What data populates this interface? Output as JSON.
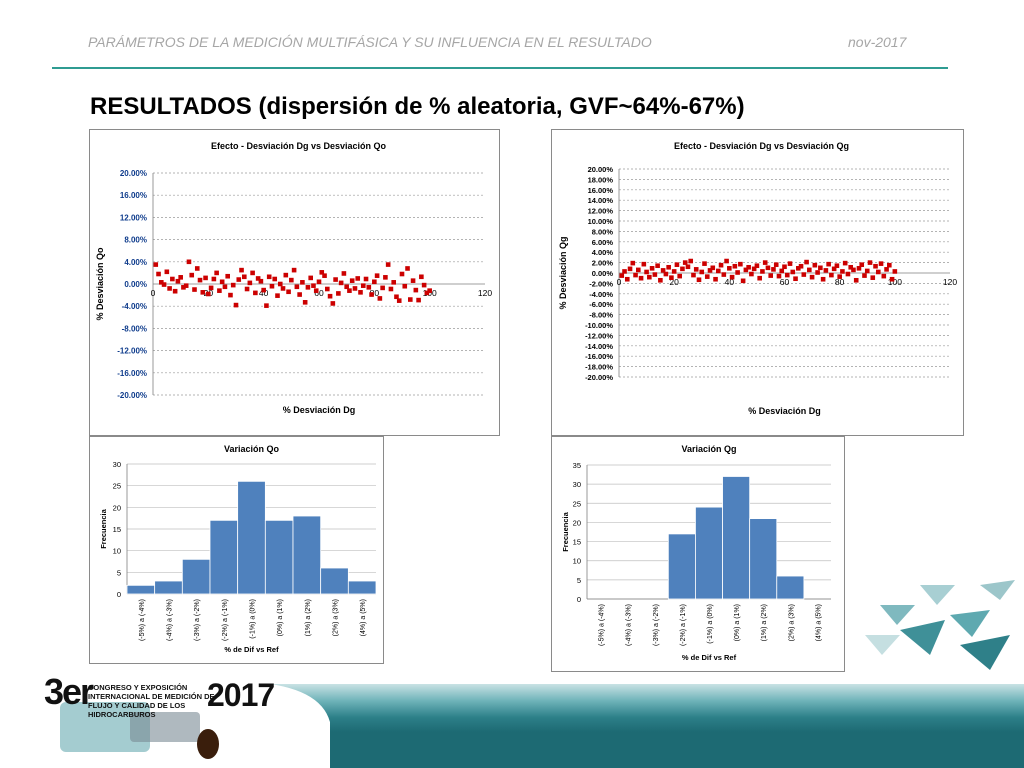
{
  "header": {
    "left": "PARÁMETROS DE LA MEDICIÓN MULTIFÁSICA Y SU INFLUENCIA EN EL RESULTADO",
    "right": "nov-2017"
  },
  "slide_title": "RESULTADOS (dispersión de % aleatoria, GVF~64%-67%)",
  "logo": {
    "edition": "3er",
    "text": "CONGRESO Y EXPOSICIÓN INTERNACIONAL DE MEDICIÓN DE FLUJO Y CALIDAD DE LOS HIDROCARBUROS",
    "year": "2017"
  },
  "colors": {
    "accent": "#2f9c92",
    "scatter_marker": "#cc0000",
    "bar_fill": "#4f81bd",
    "tick_blue": "#0f3c8c"
  },
  "chart_data": [
    {
      "type": "scatter",
      "title": "Efecto - Desviación Dg vs Desviación Qo",
      "xlabel": "% Desviación Dg",
      "ylabel": "% Desviación Qo",
      "xlim": [
        0,
        120
      ],
      "xticks": [
        "0",
        "20",
        "40",
        "60",
        "80",
        "100",
        "120"
      ],
      "ylim": [
        -20,
        20
      ],
      "yticks": [
        "20.00%",
        "16.00%",
        "12.00%",
        "8.00%",
        "4.00%",
        "0.00%",
        "-4.00%",
        "-8.00%",
        "-12.00%",
        "-16.00%",
        "-20.00%"
      ],
      "grid": true,
      "points": [
        [
          1,
          3.5
        ],
        [
          2,
          1.8
        ],
        [
          3,
          0.3
        ],
        [
          4,
          -0.1
        ],
        [
          5,
          2.2
        ],
        [
          6,
          -0.8
        ],
        [
          7,
          0.9
        ],
        [
          8,
          -1.3
        ],
        [
          9,
          0.5
        ],
        [
          10,
          1.2
        ],
        [
          11,
          -0.6
        ],
        [
          12,
          -0.3
        ],
        [
          13,
          4.0
        ],
        [
          14,
          1.6
        ],
        [
          15,
          -1.0
        ],
        [
          16,
          2.8
        ],
        [
          17,
          0.7
        ],
        [
          18,
          -1.5
        ],
        [
          19,
          1.1
        ],
        [
          20,
          -1.8
        ],
        [
          21,
          -0.7
        ],
        [
          22,
          0.9
        ],
        [
          23,
          2.0
        ],
        [
          24,
          -1.2
        ],
        [
          25,
          0.4
        ],
        [
          26,
          -0.5
        ],
        [
          27,
          1.4
        ],
        [
          28,
          -2.0
        ],
        [
          29,
          -0.2
        ],
        [
          30,
          -3.8
        ],
        [
          31,
          0.8
        ],
        [
          32,
          2.5
        ],
        [
          33,
          1.3
        ],
        [
          34,
          -0.9
        ],
        [
          35,
          0.2
        ],
        [
          36,
          2.0
        ],
        [
          37,
          -1.6
        ],
        [
          38,
          1.0
        ],
        [
          39,
          0.5
        ],
        [
          40,
          -1.1
        ],
        [
          41,
          -3.9
        ],
        [
          42,
          1.3
        ],
        [
          43,
          -0.4
        ],
        [
          44,
          0.9
        ],
        [
          45,
          -2.1
        ],
        [
          46,
          0.0
        ],
        [
          47,
          -0.8
        ],
        [
          48,
          1.6
        ],
        [
          49,
          -1.4
        ],
        [
          50,
          0.7
        ],
        [
          51,
          2.5
        ],
        [
          52,
          -0.5
        ],
        [
          53,
          -1.9
        ],
        [
          54,
          0.3
        ],
        [
          55,
          -3.3
        ],
        [
          56,
          -0.6
        ],
        [
          57,
          1.1
        ],
        [
          58,
          -0.3
        ],
        [
          59,
          -1.2
        ],
        [
          60,
          0.4
        ],
        [
          61,
          2.1
        ],
        [
          62,
          1.5
        ],
        [
          63,
          -0.9
        ],
        [
          64,
          -2.2
        ],
        [
          65,
          -3.5
        ],
        [
          66,
          0.8
        ],
        [
          67,
          -1.7
        ],
        [
          68,
          0.2
        ],
        [
          69,
          1.9
        ],
        [
          70,
          -0.5
        ],
        [
          71,
          -1.2
        ],
        [
          72,
          0.6
        ],
        [
          73,
          -0.8
        ],
        [
          74,
          1.0
        ],
        [
          75,
          -1.5
        ],
        [
          76,
          -0.3
        ],
        [
          77,
          0.9
        ],
        [
          78,
          -0.6
        ],
        [
          79,
          -1.9
        ],
        [
          80,
          0.4
        ],
        [
          81,
          1.5
        ],
        [
          82,
          -2.6
        ],
        [
          83,
          -0.7
        ],
        [
          84,
          1.2
        ],
        [
          85,
          3.5
        ],
        [
          86,
          -0.9
        ],
        [
          87,
          0.3
        ],
        [
          88,
          -2.3
        ],
        [
          89,
          -3.0
        ],
        [
          90,
          1.8
        ],
        [
          91,
          -0.4
        ],
        [
          92,
          2.8
        ],
        [
          93,
          -2.8
        ],
        [
          94,
          0.6
        ],
        [
          95,
          -1.1
        ],
        [
          96,
          -2.9
        ],
        [
          97,
          1.3
        ],
        [
          98,
          -0.2
        ],
        [
          99,
          -1.6
        ],
        [
          100,
          -1.2
        ]
      ]
    },
    {
      "type": "scatter",
      "title": "Efecto - Desviación Dg vs Desviación Qg",
      "xlabel": "% Desviación Dg",
      "ylabel": "% Desviación Qg",
      "xlim": [
        0,
        120
      ],
      "xticks": [
        "0",
        "20",
        "40",
        "60",
        "80",
        "100",
        "120"
      ],
      "ylim": [
        -20,
        20
      ],
      "yticks": [
        "20.00%",
        "18.00%",
        "16.00%",
        "14.00%",
        "12.00%",
        "10.00%",
        "8.00%",
        "6.00%",
        "4.00%",
        "2.00%",
        "0.00%",
        "-2.00%",
        "-4.00%",
        "-6.00%",
        "-8.00%",
        "-10.00%",
        "-12.00%",
        "-14.00%",
        "-16.00%",
        "-18.00%",
        "-20.00%"
      ],
      "grid": true,
      "points": [
        [
          1,
          -0.5
        ],
        [
          2,
          0.3
        ],
        [
          3,
          -1.2
        ],
        [
          4,
          0.8
        ],
        [
          5,
          1.9
        ],
        [
          6,
          -0.4
        ],
        [
          7,
          0.6
        ],
        [
          8,
          -1.0
        ],
        [
          9,
          1.7
        ],
        [
          10,
          0.2
        ],
        [
          11,
          -0.8
        ],
        [
          12,
          0.9
        ],
        [
          13,
          -0.3
        ],
        [
          14,
          1.4
        ],
        [
          15,
          -1.4
        ],
        [
          16,
          0.5
        ],
        [
          17,
          -0.2
        ],
        [
          18,
          1.1
        ],
        [
          19,
          -0.9
        ],
        [
          20,
          0.3
        ],
        [
          21,
          1.6
        ],
        [
          22,
          -0.6
        ],
        [
          23,
          0.8
        ],
        [
          24,
          2.0
        ],
        [
          25,
          1.2
        ],
        [
          26,
          2.3
        ],
        [
          27,
          -0.4
        ],
        [
          28,
          0.7
        ],
        [
          29,
          -1.3
        ],
        [
          30,
          0.2
        ],
        [
          31,
          1.8
        ],
        [
          32,
          -0.7
        ],
        [
          33,
          0.5
        ],
        [
          34,
          1.0
        ],
        [
          35,
          -1.2
        ],
        [
          36,
          0.4
        ],
        [
          37,
          1.5
        ],
        [
          38,
          -0.3
        ],
        [
          39,
          2.3
        ],
        [
          40,
          0.9
        ],
        [
          41,
          -0.8
        ],
        [
          42,
          1.3
        ],
        [
          43,
          0.1
        ],
        [
          44,
          1.7
        ],
        [
          45,
          -1.5
        ],
        [
          46,
          0.6
        ],
        [
          47,
          1.1
        ],
        [
          48,
          -0.2
        ],
        [
          49,
          0.8
        ],
        [
          50,
          1.4
        ],
        [
          51,
          -1.0
        ],
        [
          52,
          0.3
        ],
        [
          53,
          2.0
        ],
        [
          54,
          1.0
        ],
        [
          55,
          -0.5
        ],
        [
          56,
          0.7
        ],
        [
          57,
          1.6
        ],
        [
          58,
          -0.6
        ],
        [
          59,
          0.4
        ],
        [
          60,
          1.2
        ],
        [
          61,
          -0.4
        ],
        [
          62,
          1.8
        ],
        [
          63,
          0.2
        ],
        [
          64,
          -1.1
        ],
        [
          65,
          0.9
        ],
        [
          66,
          1.3
        ],
        [
          67,
          -0.3
        ],
        [
          68,
          2.1
        ],
        [
          69,
          0.6
        ],
        [
          70,
          -0.8
        ],
        [
          71,
          1.5
        ],
        [
          72,
          0.1
        ],
        [
          73,
          1.0
        ],
        [
          74,
          -1.2
        ],
        [
          75,
          0.5
        ],
        [
          76,
          1.7
        ],
        [
          77,
          -0.4
        ],
        [
          78,
          0.8
        ],
        [
          79,
          1.4
        ],
        [
          80,
          -0.7
        ],
        [
          81,
          0.3
        ],
        [
          82,
          1.9
        ],
        [
          83,
          -0.2
        ],
        [
          84,
          1.1
        ],
        [
          85,
          0.6
        ],
        [
          86,
          -1.4
        ],
        [
          87,
          0.9
        ],
        [
          88,
          1.6
        ],
        [
          89,
          -0.5
        ],
        [
          90,
          0.4
        ],
        [
          91,
          2.0
        ],
        [
          92,
          -0.9
        ],
        [
          93,
          1.3
        ],
        [
          94,
          0.2
        ],
        [
          95,
          1.8
        ],
        [
          96,
          -0.6
        ],
        [
          97,
          0.7
        ],
        [
          98,
          1.5
        ],
        [
          99,
          -1.2
        ],
        [
          100,
          0.3
        ]
      ]
    },
    {
      "type": "bar",
      "title": "Variación Qo",
      "xlabel": "% de Dif vs Ref",
      "ylabel": "Frecuencia",
      "ylim": [
        0,
        30
      ],
      "yticks": [
        0,
        5,
        10,
        15,
        20,
        25,
        30
      ],
      "categories": [
        "(-5%) a (-4%)",
        "(-4%) a (-3%)",
        "(-3%) a (-2%)",
        "(-2%) a (-1%)",
        "(-1%) a (0%)",
        "(0%) a (1%)",
        "(1%) a (2%)",
        "(2%) a (3%)",
        "(4%) a (5%)"
      ],
      "values": [
        2,
        3,
        8,
        17,
        26,
        17,
        18,
        6,
        3
      ]
    },
    {
      "type": "bar",
      "title": "Variación Qg",
      "xlabel": "% de Dif vs Ref",
      "ylabel": "Frecuencia",
      "ylim": [
        0,
        35
      ],
      "yticks": [
        0,
        5,
        10,
        15,
        20,
        25,
        30,
        35
      ],
      "categories": [
        "(-5%) a (-4%)",
        "(-4%) a (-3%)",
        "(-3%) a (-2%)",
        "(-2%) a (-1%)",
        "(-1%) a (0%)",
        "(0%) a (1%)",
        "(1%) a (2%)",
        "(2%) a (3%)",
        "(4%) a (5%)"
      ],
      "values": [
        0,
        0,
        0,
        17,
        24,
        32,
        21,
        6,
        0
      ]
    }
  ]
}
